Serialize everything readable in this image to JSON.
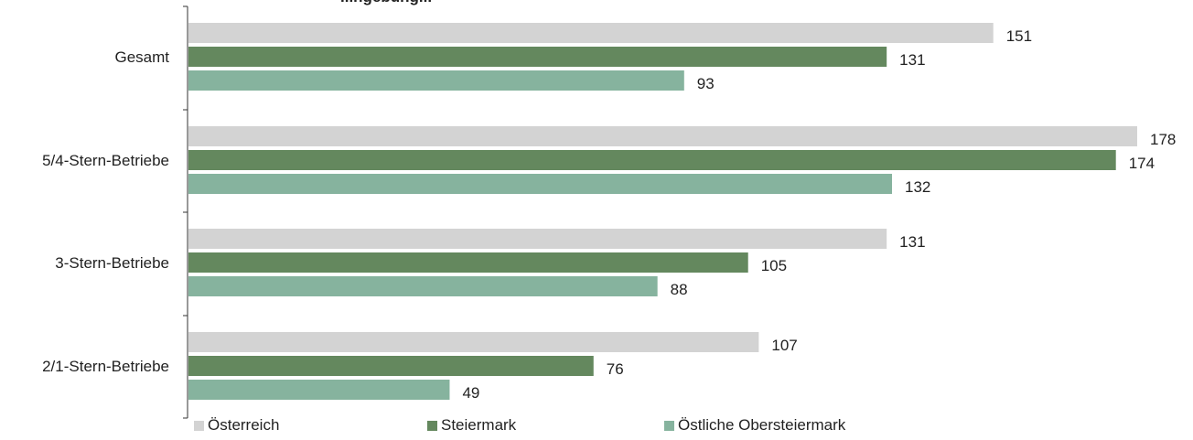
{
  "chart_data": {
    "type": "bar",
    "orientation": "horizontal",
    "title": "...ngebung...",
    "categories": [
      "Gesamt",
      "5/4-Stern-Betriebe",
      "3-Stern-Betriebe",
      "2/1-Stern-Betriebe"
    ],
    "series": [
      {
        "name": "Österreich",
        "color": "#d3d3d3",
        "values": [
          151,
          178,
          131,
          107
        ]
      },
      {
        "name": "Steiermark",
        "color": "#64885e",
        "values": [
          131,
          174,
          105,
          76
        ]
      },
      {
        "name": "Östliche Obersteiermark",
        "color": "#86b39e",
        "values": [
          93,
          132,
          88,
          49
        ]
      }
    ],
    "xlim": [
      0,
      178
    ],
    "grid": false,
    "legend_position": "bottom"
  }
}
